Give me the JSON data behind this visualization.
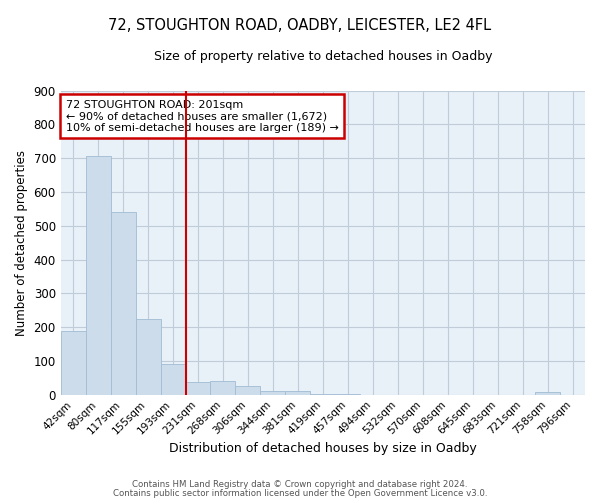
{
  "title": "72, STOUGHTON ROAD, OADBY, LEICESTER, LE2 4FL",
  "subtitle": "Size of property relative to detached houses in Oadby",
  "xlabel": "Distribution of detached houses by size in Oadby",
  "ylabel": "Number of detached properties",
  "bin_labels": [
    "42sqm",
    "80sqm",
    "117sqm",
    "155sqm",
    "193sqm",
    "231sqm",
    "268sqm",
    "306sqm",
    "344sqm",
    "381sqm",
    "419sqm",
    "457sqm",
    "494sqm",
    "532sqm",
    "570sqm",
    "608sqm",
    "645sqm",
    "683sqm",
    "721sqm",
    "758sqm",
    "796sqm"
  ],
  "bar_heights": [
    190,
    705,
    540,
    225,
    90,
    38,
    40,
    25,
    12,
    12,
    3,
    3,
    0,
    0,
    0,
    0,
    0,
    0,
    0,
    8,
    0
  ],
  "bar_color": "#cddceb",
  "bar_edge_color": "#a0bcd4",
  "vline_x_index": 4.5,
  "vline_color": "#cc0000",
  "annotation_text": "72 STOUGHTON ROAD: 201sqm\n← 90% of detached houses are smaller (1,672)\n10% of semi-detached houses are larger (189) →",
  "annotation_box_color": "#cc0000",
  "ylim": [
    0,
    900
  ],
  "yticks": [
    0,
    100,
    200,
    300,
    400,
    500,
    600,
    700,
    800,
    900
  ],
  "footer_line1": "Contains HM Land Registry data © Crown copyright and database right 2024.",
  "footer_line2": "Contains public sector information licensed under the Open Government Licence v3.0.",
  "bg_color": "#ffffff",
  "plot_bg_color": "#e8f0f8",
  "grid_color": "#c0ccd8"
}
